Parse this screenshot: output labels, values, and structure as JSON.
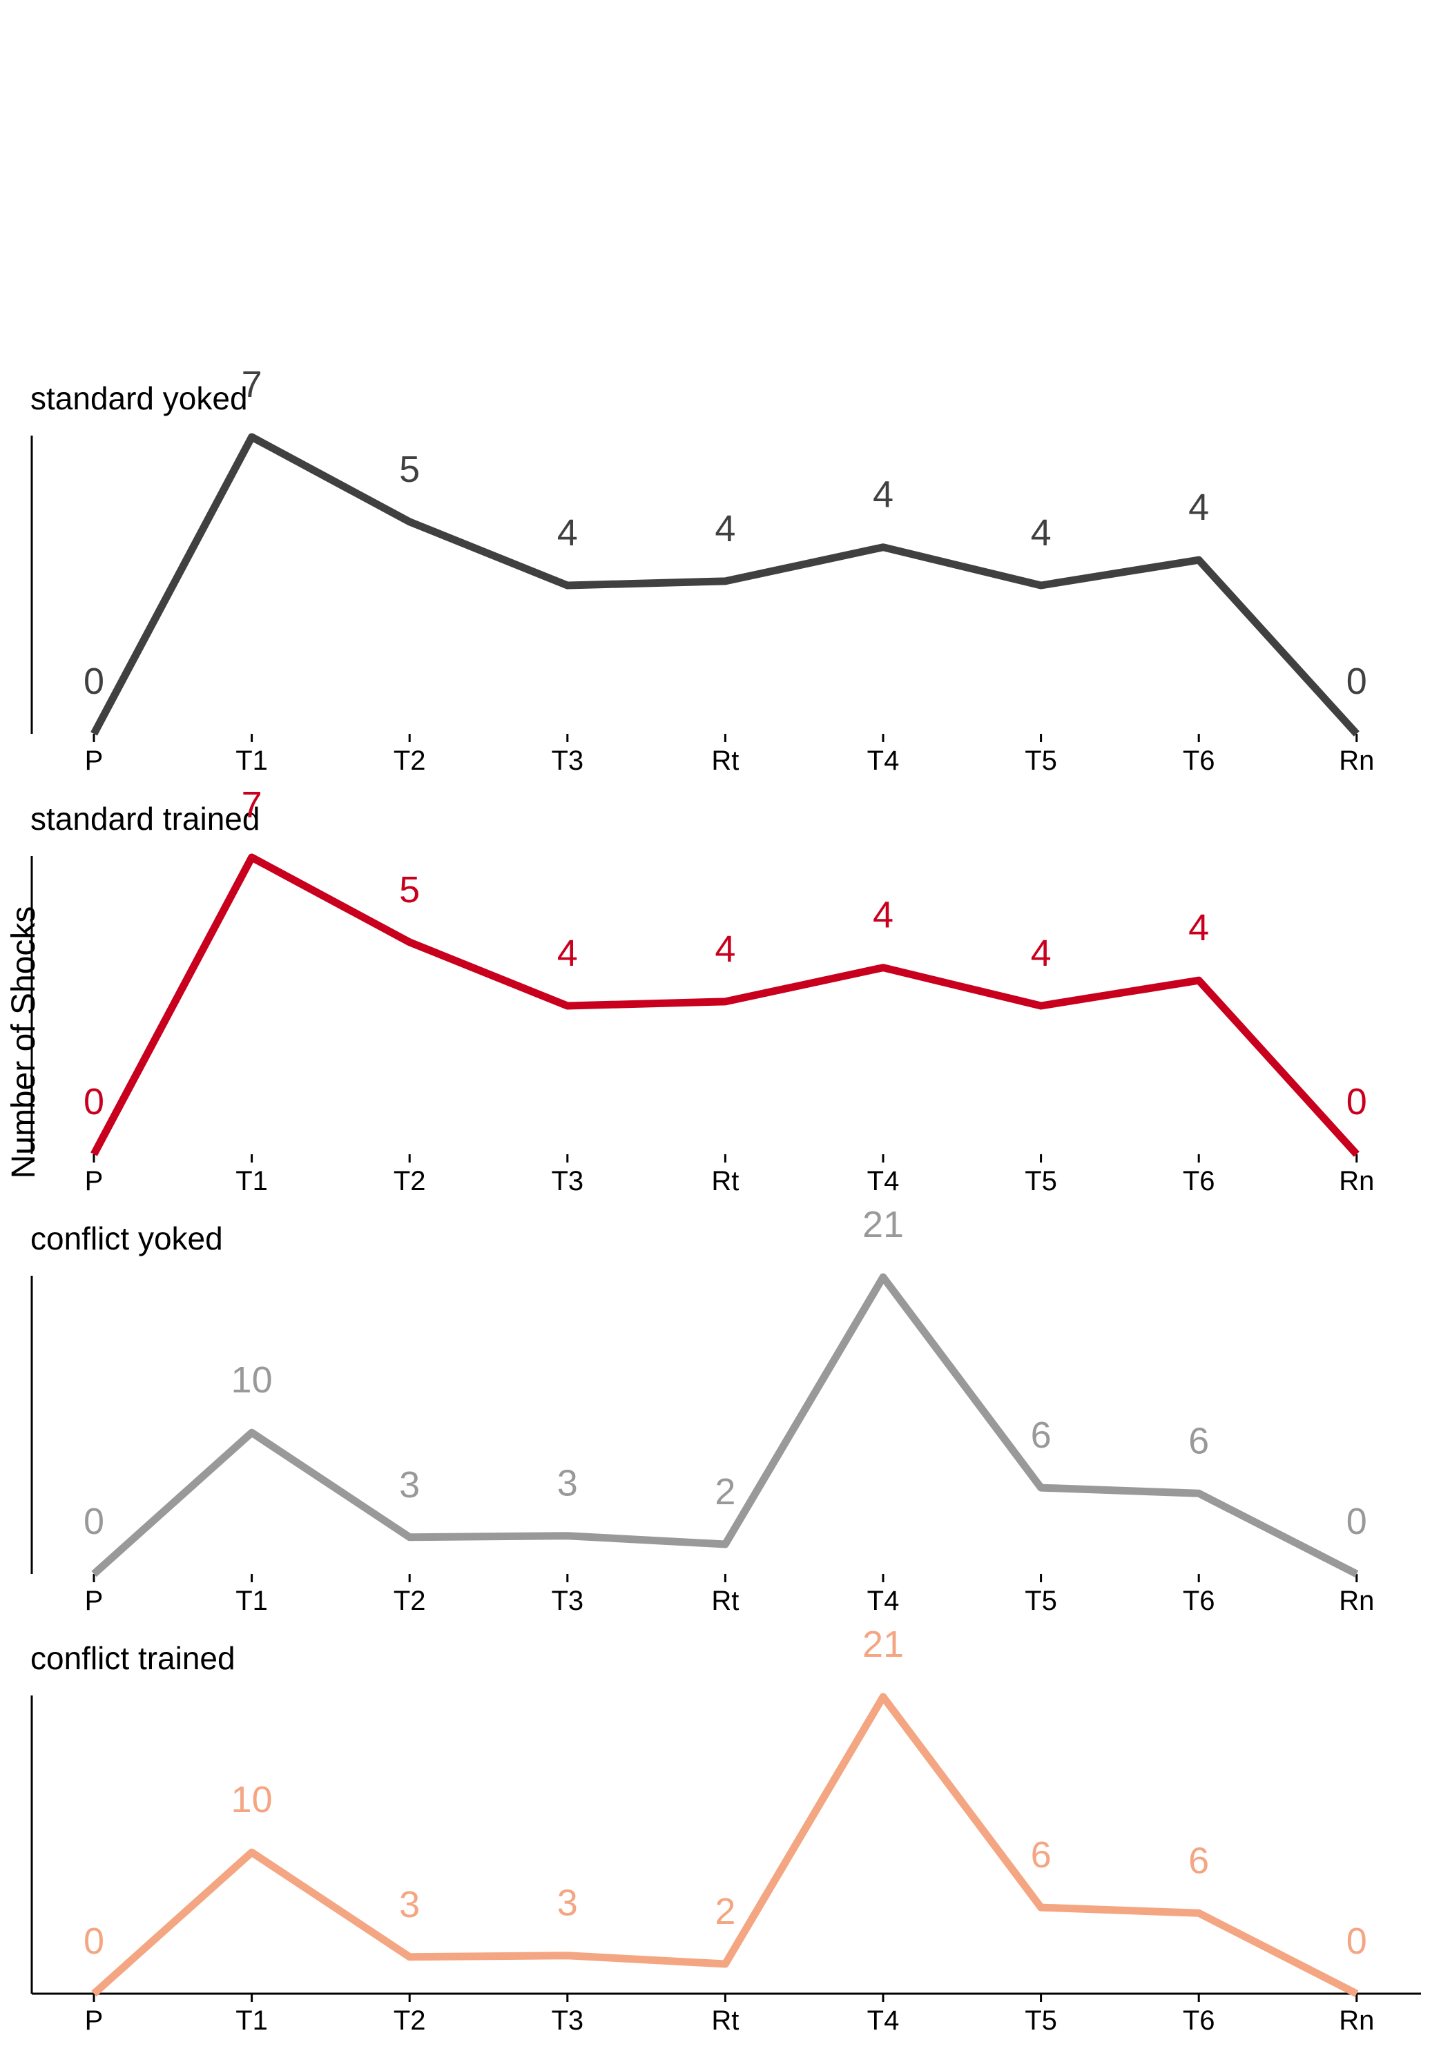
{
  "ylabel": "Number of Shocks",
  "chart_data": {
    "type": "line",
    "ylabel": "Number of Shocks",
    "categories": [
      "P",
      "T1",
      "T2",
      "T3",
      "Rt",
      "T4",
      "T5",
      "T6",
      "Rn"
    ],
    "grid": false,
    "panels": [
      {
        "title": "standard yoked",
        "color": "#404040",
        "values": [
          0,
          7,
          5,
          3.5,
          3.6,
          4.4,
          3.5,
          4.1,
          0
        ],
        "labels": [
          "0",
          "7",
          "5",
          "4",
          "4",
          "4",
          "4",
          "4",
          "0"
        ],
        "ylim": [
          0,
          7
        ]
      },
      {
        "title": "standard trained",
        "color": "#c8001e",
        "values": [
          0,
          7,
          5,
          3.5,
          3.6,
          4.4,
          3.5,
          4.1,
          0
        ],
        "labels": [
          "0",
          "7",
          "5",
          "4",
          "4",
          "4",
          "4",
          "4",
          "0"
        ],
        "ylim": [
          0,
          7
        ]
      },
      {
        "title": "conflict yoked",
        "color": "#999999",
        "values": [
          0,
          10,
          2.6,
          2.7,
          2.1,
          21,
          6.1,
          5.7,
          0
        ],
        "labels": [
          "0",
          "10",
          "3",
          "3",
          "2",
          "21",
          "6",
          "6",
          "0"
        ],
        "ylim": [
          0,
          21
        ]
      },
      {
        "title": "conflict trained",
        "color": "#f4a582",
        "values": [
          0,
          10,
          2.6,
          2.7,
          2.1,
          21,
          6.1,
          5.7,
          0
        ],
        "labels": [
          "0",
          "10",
          "3",
          "3",
          "2",
          "21",
          "6",
          "6",
          "0"
        ],
        "ylim": [
          0,
          21
        ]
      }
    ]
  }
}
